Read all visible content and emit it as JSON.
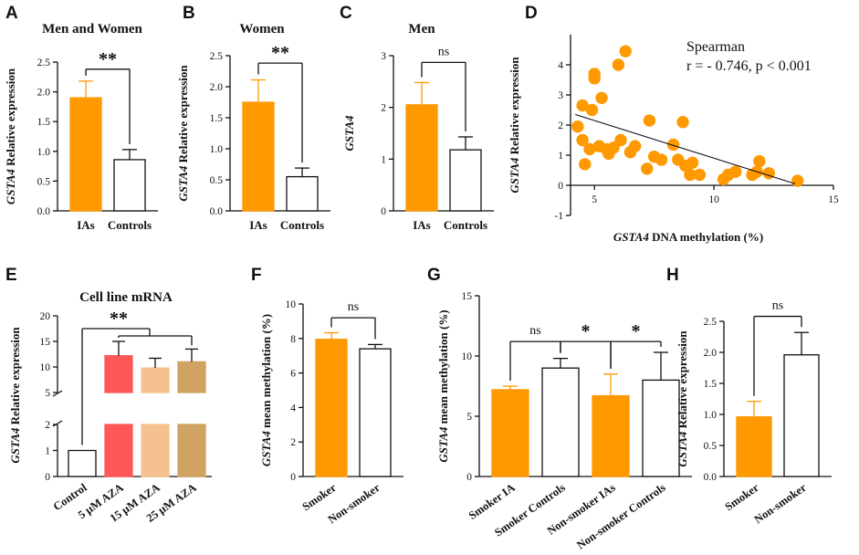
{
  "palette": {
    "orange": "#ff9900",
    "white": "#ffffff",
    "black": "#111111",
    "red": "#ff5757",
    "peach": "#f5c28f",
    "tan": "#d1a363"
  },
  "chart_data": [
    {
      "id": "A",
      "letter": "A",
      "type": "bar",
      "title": "Men and Women",
      "ylabel_gene": "GSTA4",
      "ylabel": "Relative expression",
      "categories": [
        "IAs",
        "Controls"
      ],
      "values": [
        1.9,
        0.86
      ],
      "errors": [
        0.28,
        0.17
      ],
      "fills": [
        "orange",
        "white"
      ],
      "ylim": [
        0,
        2.5
      ],
      "yticks": [
        "0.0",
        "0.5",
        "1.0",
        "1.5",
        "2.0",
        "2.5"
      ],
      "brackets": [
        {
          "label": "**",
          "from": 0,
          "to": 1,
          "y": 2.38
        }
      ]
    },
    {
      "id": "B",
      "letter": "B",
      "type": "bar",
      "title": "Women",
      "ylabel_gene": "GSTA4",
      "ylabel": "Relative expression",
      "categories": [
        "IAs",
        "Controls"
      ],
      "values": [
        1.75,
        0.55
      ],
      "errors": [
        0.36,
        0.14
      ],
      "fills": [
        "orange",
        "white"
      ],
      "ylim": [
        0,
        2.5
      ],
      "yticks": [
        "0.0",
        "0.5",
        "1.0",
        "1.5",
        "2.0",
        "2.5"
      ],
      "brackets": [
        {
          "label": "**",
          "from": 0,
          "to": 1,
          "y": 2.38
        }
      ]
    },
    {
      "id": "C",
      "letter": "C",
      "type": "bar",
      "title": "Men",
      "ylabel_gene": "GSTA4",
      "ylabel": "",
      "categories": [
        "IAs",
        "Controls"
      ],
      "values": [
        2.05,
        1.18
      ],
      "errors": [
        0.43,
        0.25
      ],
      "fills": [
        "orange",
        "white"
      ],
      "ylim": [
        0,
        3
      ],
      "yticks": [
        "0",
        "1",
        "2",
        "3"
      ],
      "brackets": [
        {
          "label": "ns",
          "from": 0,
          "to": 1,
          "y": 2.87
        }
      ]
    },
    {
      "id": "D",
      "letter": "D",
      "type": "scatter",
      "ylabel_gene": "GSTA4",
      "ylabel": "Relative expression",
      "xlabel_gene": "GSTA4",
      "xlabel": " DNA methylation (%)",
      "xlim": [
        4,
        15
      ],
      "xticks": [
        "5",
        "10",
        "15"
      ],
      "xtick_values": [
        5,
        10,
        15
      ],
      "ylim": [
        -1,
        5
      ],
      "yticks": [
        "-1",
        "0",
        "1",
        "2",
        "3",
        "4"
      ],
      "ytick_values": [
        -1,
        0,
        1,
        2,
        3,
        4
      ],
      "annotation_title": "Spearman",
      "annotation_stat": "r = - 0.746, p < 0.001",
      "trend": {
        "x": [
          4.2,
          13.4
        ],
        "y": [
          2.35,
          0.05
        ]
      },
      "points": [
        [
          4.3,
          1.95
        ],
        [
          4.5,
          2.65
        ],
        [
          4.5,
          1.5
        ],
        [
          4.6,
          0.7
        ],
        [
          4.8,
          1.2
        ],
        [
          4.9,
          2.5
        ],
        [
          5.0,
          3.55
        ],
        [
          5.0,
          3.7
        ],
        [
          5.2,
          1.3
        ],
        [
          5.3,
          2.9
        ],
        [
          5.5,
          1.2
        ],
        [
          5.6,
          1.05
        ],
        [
          5.8,
          1.25
        ],
        [
          6.0,
          4.0
        ],
        [
          6.1,
          1.5
        ],
        [
          6.3,
          4.45
        ],
        [
          6.5,
          1.1
        ],
        [
          6.7,
          1.3
        ],
        [
          7.2,
          0.55
        ],
        [
          7.3,
          2.15
        ],
        [
          7.5,
          0.95
        ],
        [
          7.8,
          0.85
        ],
        [
          8.3,
          1.35
        ],
        [
          8.5,
          0.85
        ],
        [
          8.7,
          2.1
        ],
        [
          8.8,
          0.65
        ],
        [
          9.0,
          0.35
        ],
        [
          9.1,
          0.75
        ],
        [
          9.4,
          0.35
        ],
        [
          10.4,
          0.2
        ],
        [
          10.6,
          0.35
        ],
        [
          10.9,
          0.45
        ],
        [
          11.6,
          0.35
        ],
        [
          11.8,
          0.45
        ],
        [
          11.9,
          0.8
        ],
        [
          12.3,
          0.4
        ],
        [
          13.5,
          0.15
        ]
      ]
    },
    {
      "id": "E",
      "letter": "E",
      "type": "bar",
      "title": "Cell line mRNA",
      "ylabel_gene": "GSTA4",
      "ylabel": "Relative expression",
      "categories": [
        "Control",
        "5 μM AZA",
        "15 μM AZA",
        "25 μM AZA"
      ],
      "values": [
        1,
        12.2,
        9.8,
        11.0
      ],
      "errors": [
        0,
        2.8,
        1.9,
        2.5
      ],
      "fills": [
        "white",
        "red",
        "peach",
        "tan"
      ],
      "broken_axis": {
        "lower": [
          0,
          2
        ],
        "upper": [
          5,
          20
        ]
      },
      "yticks": [
        "0",
        "1",
        "2",
        "5",
        "10",
        "15",
        "20"
      ],
      "ytick_values": [
        0,
        1,
        2,
        5,
        10,
        15,
        20
      ],
      "brackets": [
        {
          "label": "**",
          "from": 0,
          "to": 3,
          "y": 17.5
        }
      ]
    },
    {
      "id": "F",
      "letter": "F",
      "type": "bar",
      "ylabel_gene": "GSTA4",
      "ylabel": "mean methylation (%)",
      "categories": [
        "Smoker",
        "Non-smoker"
      ],
      "values": [
        7.95,
        7.4
      ],
      "errors": [
        0.38,
        0.25
      ],
      "fills": [
        "orange",
        "white"
      ],
      "ylim": [
        0,
        10
      ],
      "yticks": [
        "0",
        "2",
        "4",
        "6",
        "8",
        "10"
      ],
      "brackets": [
        {
          "label": "ns",
          "from": 0,
          "to": 1,
          "y": 9.2
        }
      ]
    },
    {
      "id": "G",
      "letter": "G",
      "type": "bar",
      "ylabel_gene": "GSTA4",
      "ylabel": "mean methylation (%)",
      "categories": [
        "Smoker IA",
        "Smoker Controls",
        "Non-smoker IAs",
        "Non-smoker Controls"
      ],
      "values": [
        7.2,
        9.0,
        6.7,
        8.0
      ],
      "errors": [
        0.3,
        0.8,
        1.8,
        2.3
      ],
      "fills": [
        "orange",
        "white",
        "orange",
        "white"
      ],
      "ylim": [
        0,
        15
      ],
      "yticks": [
        "0",
        "5",
        "10",
        "15"
      ],
      "brackets": [
        {
          "label": "ns",
          "from": 0,
          "to": 1,
          "y": 11.2
        },
        {
          "label": "*",
          "from": 1,
          "to": 2,
          "y": 11.2
        },
        {
          "label": "*",
          "from": 2,
          "to": 3,
          "y": 11.2
        }
      ]
    },
    {
      "id": "H",
      "letter": "H",
      "type": "bar",
      "ylabel_gene": "GSTA4",
      "ylabel": "Relative expression",
      "categories": [
        "Smoker",
        "Non-smoker"
      ],
      "values": [
        0.96,
        1.96
      ],
      "errors": [
        0.25,
        0.36
      ],
      "fills": [
        "orange",
        "white"
      ],
      "ylim": [
        0,
        2.5
      ],
      "yticks": [
        "0.0",
        "0.5",
        "1.0",
        "1.5",
        "2.0",
        "2.5"
      ],
      "brackets": [
        {
          "label": "ns",
          "from": 0,
          "to": 1,
          "y": 2.58
        }
      ]
    }
  ]
}
